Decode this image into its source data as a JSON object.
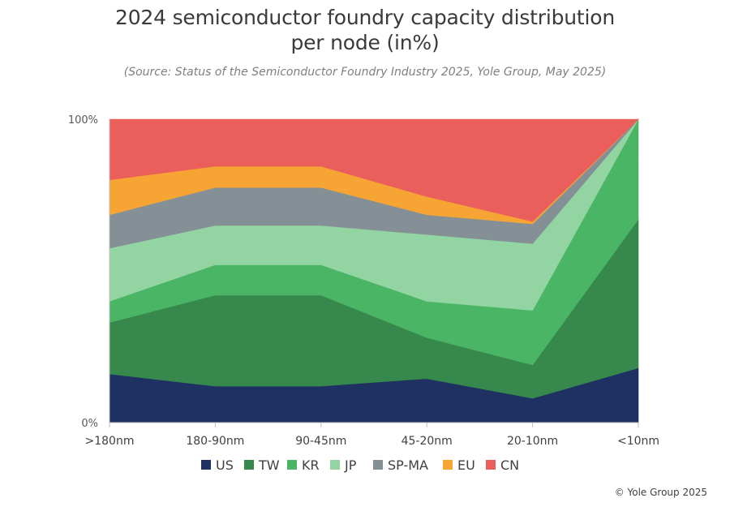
{
  "title_line1": "2024 semiconductor foundry capacity distribution",
  "title_line2": "per node (in%)",
  "subtitle": "(Source: Status of the Semiconductor Foundry Industry 2025, Yole Group, May 2025)",
  "copyright": "© Yole Group 2025",
  "chart_data": {
    "type": "area",
    "stacked": true,
    "categories": [
      ">180nm",
      "180-90nm",
      "90-45nm",
      "45-20nm",
      "20-10nm",
      "<10nm"
    ],
    "y_ticks": [
      {
        "value": 0,
        "label": "0%"
      },
      {
        "value": 100,
        "label": "100%"
      }
    ],
    "ylim": [
      0,
      100
    ],
    "legend_position": "bottom",
    "series": [
      {
        "name": "US",
        "color": "#1f3162",
        "values": [
          16,
          12,
          12,
          14.5,
          8,
          18
        ]
      },
      {
        "name": "TW",
        "color": "#36884c",
        "values": [
          17,
          30,
          30,
          13.5,
          11,
          49
        ]
      },
      {
        "name": "KR",
        "color": "#4ab564",
        "values": [
          7,
          10,
          10,
          12,
          18,
          33
        ]
      },
      {
        "name": "JP",
        "color": "#93d4a3",
        "values": [
          17.5,
          13,
          13,
          22,
          22,
          0
        ]
      },
      {
        "name": "SP-MA",
        "color": "#848f96",
        "values": [
          11,
          12.5,
          12.5,
          6.5,
          6.5,
          0
        ]
      },
      {
        "name": "EU",
        "color": "#f6a534",
        "values": [
          11.5,
          7,
          7,
          6,
          0.8,
          0
        ]
      },
      {
        "name": "CN",
        "color": "#ea5f5b",
        "values": [
          20,
          15.5,
          15.5,
          25.5,
          33.7,
          0
        ]
      }
    ]
  }
}
